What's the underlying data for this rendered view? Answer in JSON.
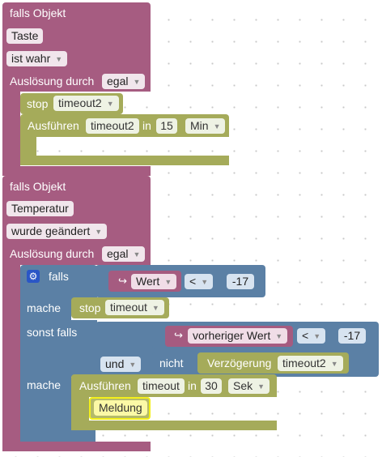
{
  "block1": {
    "header": "falls Objekt",
    "object": "Taste",
    "condition": "ist wahr",
    "trigger_label": "Auslösung durch",
    "trigger_value": "egal",
    "stop_label": "stop",
    "stop_value": "timeout2",
    "exec_label": "Ausführen",
    "exec_timer": "timeout2",
    "exec_in": "in",
    "exec_number": "15",
    "exec_unit": "Min"
  },
  "block2": {
    "header": "falls Objekt",
    "object": "Temperatur",
    "condition": "wurde geändert",
    "trigger_label": "Auslösung durch",
    "trigger_value": "egal",
    "if_label": "falls",
    "if_var": "Wert",
    "if_op": "<",
    "if_num": "-17",
    "then_label": "mache",
    "then_stop_label": "stop",
    "then_stop_value": "timeout",
    "elseif_label": "sonst falls",
    "elseif_var": "vorheriger Wert",
    "elseif_op": "<",
    "elseif_num": "-17",
    "and_label": "und",
    "not_label": "nicht",
    "delay_label": "Verzögerung",
    "delay_value": "timeout2",
    "then2_label": "mache",
    "exec_label": "Ausführen",
    "exec_timer": "timeout",
    "exec_in": "in",
    "exec_number": "30",
    "exec_unit": "Sek",
    "message": "Meldung"
  },
  "icons": {
    "dropdown": "chevron-down-icon",
    "arrow": "return-arrow-icon",
    "gear": "gear-icon"
  }
}
